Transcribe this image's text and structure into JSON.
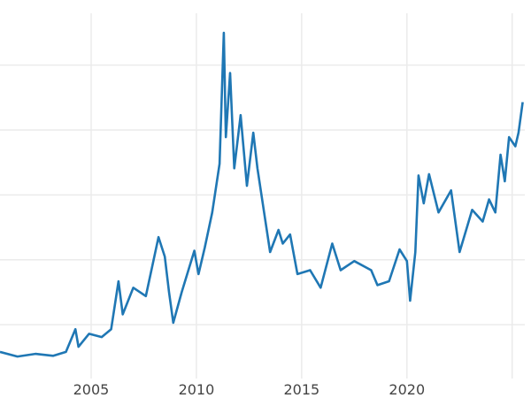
{
  "chart_data": {
    "type": "line",
    "title": "",
    "xlabel": "",
    "ylabel": "",
    "xlim": [
      2000.67,
      2025.6
    ],
    "ylim": [
      1.7,
      58
    ],
    "grid": true,
    "x_ticks": [
      2005,
      2010,
      2015,
      2020,
      2025
    ],
    "x_tick_labels": [
      "2005",
      "2010",
      "2015",
      "2020",
      ""
    ],
    "y_gridlines": [
      10,
      20,
      30,
      40,
      50
    ],
    "line_color": "#1f77b4",
    "grid_color": "#ebebeb",
    "series": [
      {
        "x": [
          2000.67,
          2001.5,
          2002.35,
          2003.2,
          2003.8,
          2004.25,
          2004.4,
          2004.9,
          2005.5,
          2005.95,
          2006.3,
          2006.5,
          2007.0,
          2007.6,
          2008.2,
          2008.5,
          2008.7,
          2008.9,
          2009.3,
          2009.9,
          2010.1,
          2010.4,
          2010.75,
          2011.1,
          2011.3,
          2011.4,
          2011.6,
          2011.8,
          2012.1,
          2012.4,
          2012.7,
          2012.9,
          2013.25,
          2013.5,
          2013.9,
          2014.1,
          2014.45,
          2014.8,
          2015.4,
          2015.9,
          2016.45,
          2016.85,
          2017.5,
          2018.3,
          2018.6,
          2019.15,
          2019.65,
          2020.0,
          2020.15,
          2020.4,
          2020.55,
          2020.8,
          2021.05,
          2021.5,
          2022.1,
          2022.5,
          2023.1,
          2023.6,
          2023.9,
          2024.2,
          2024.45,
          2024.65,
          2024.85,
          2025.15,
          2025.3,
          2025.5
        ],
        "y": [
          5.8,
          5.1,
          5.5,
          5.2,
          5.8,
          9.3,
          6.6,
          8.6,
          8.1,
          9.3,
          16.7,
          11.6,
          15.7,
          14.4,
          23.5,
          20.5,
          15.0,
          10.3,
          15.0,
          21.4,
          17.8,
          21.9,
          27.3,
          34.8,
          55.0,
          38.9,
          48.8,
          34.1,
          42.3,
          31.4,
          39.6,
          34.1,
          26.6,
          21.2,
          24.6,
          22.5,
          23.9,
          17.8,
          18.4,
          15.7,
          22.5,
          18.4,
          19.8,
          18.4,
          16.1,
          16.7,
          21.6,
          19.8,
          13.7,
          21.2,
          33.0,
          28.7,
          33.2,
          27.3,
          30.7,
          21.2,
          27.7,
          25.9,
          29.3,
          27.3,
          36.2,
          32.1,
          38.9,
          37.5,
          39.6,
          44.3
        ]
      }
    ]
  }
}
